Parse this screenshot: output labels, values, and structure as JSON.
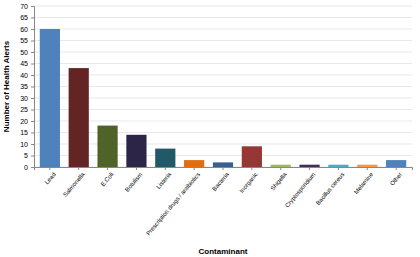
{
  "chart_data": {
    "type": "bar",
    "x_label": "Contaminant",
    "y_label": "Number of Health Alerts",
    "categories": [
      "Lead",
      "Salmonella",
      "E.Coli",
      "Botulism",
      "Listeria",
      "Prescription drugs / antibiotics",
      "Bacteria",
      "Inorganic",
      "Shigella",
      "Cryptosporidium",
      "Bacillus cereus",
      "Melamine",
      "Other"
    ],
    "values": [
      60,
      43,
      18,
      14,
      8,
      3,
      2,
      9,
      1,
      1,
      1,
      1,
      3
    ],
    "colors": [
      "#4f81bd",
      "#632523",
      "#4f6228",
      "#2d2547",
      "#215968",
      "#e46c0a",
      "#376092",
      "#953735",
      "#9bbb59",
      "#403151",
      "#4bacc6",
      "#f79646",
      "#4f81bd"
    ],
    "ylim": [
      0,
      70
    ],
    "yticks": [
      0,
      5,
      10,
      15,
      20,
      25,
      30,
      35,
      40,
      45,
      50,
      55,
      60,
      65,
      70
    ],
    "grid": true
  }
}
